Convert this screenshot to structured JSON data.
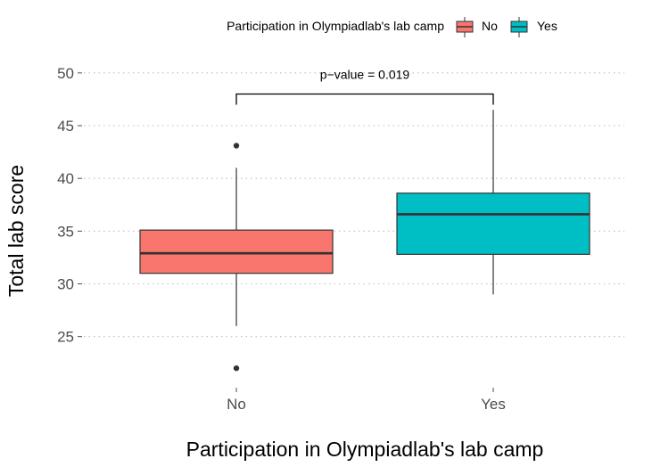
{
  "chart_data": {
    "type": "boxplot",
    "legend": {
      "title": "Participation in Olympiadlab's lab camp",
      "position": "top"
    },
    "xlabel": "Participation in Olympiadlab's lab camp",
    "ylabel": "Total lab score",
    "categories": [
      "No",
      "Yes"
    ],
    "ylim": [
      21,
      51
    ],
    "yticks": [
      25,
      30,
      35,
      40,
      45,
      50
    ],
    "grid": "horizontal-dotted",
    "colors": {
      "No": "#F8766D",
      "Yes": "#00BFC4"
    },
    "series": [
      {
        "name": "No",
        "whisker_low": 26,
        "q1": 31,
        "median": 32.9,
        "q3": 35.1,
        "whisker_high": 41,
        "outliers": [
          43.1,
          22
        ]
      },
      {
        "name": "Yes",
        "whisker_low": 29,
        "q1": 32.8,
        "median": 36.6,
        "q3": 38.6,
        "whisker_high": 46.5,
        "outliers": []
      }
    ],
    "annotation": {
      "text": "p−value = 0.019",
      "y": 48
    }
  }
}
